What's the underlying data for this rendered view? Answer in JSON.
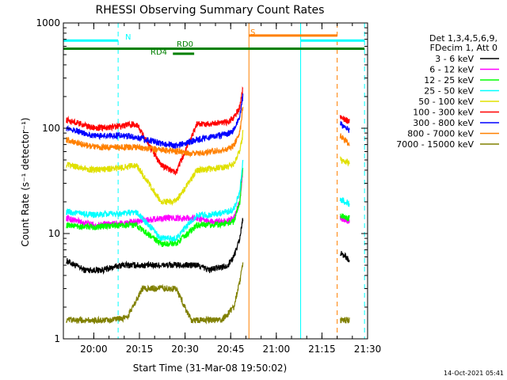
{
  "chart_data": {
    "type": "line",
    "title": "RHESSI Observing Summary Count Rates",
    "xlabel": "Start Time (31-Mar-08 19:50:02)",
    "ylabel": "Count Rate (s⁻¹ detector⁻¹)",
    "yscale": "log",
    "xlim": [
      "19:50",
      "21:30"
    ],
    "ylim": [
      1,
      1000
    ],
    "x_ticks": [
      "20:00",
      "20:15",
      "20:30",
      "20:45",
      "21:00",
      "21:15",
      "21:30"
    ],
    "y_ticks": [
      "1",
      "10",
      "100",
      "1000"
    ],
    "legend_header": [
      "Det 1,3,4,5,6,9,",
      "FDecim 1, Att 0"
    ],
    "legend_position": "right",
    "footer": "14-Oct-2021 05:41",
    "series": [
      {
        "name": "3 - 6 keV",
        "color": "#000000",
        "x": [
          "19:51",
          "19:57",
          "20:03",
          "20:09",
          "20:14",
          "20:22",
          "20:27",
          "20:34",
          "20:38",
          "20:44",
          "20:46",
          "20:48",
          "20:49",
          "21:20",
          "21:21",
          "21:23",
          "21:24"
        ],
        "y": [
          5.5,
          4.5,
          4.5,
          5,
          5,
          5,
          5,
          5,
          4.5,
          5,
          6,
          9,
          14,
          null,
          6.5,
          6,
          5.5
        ]
      },
      {
        "name": "6 - 12 keV",
        "color": "#ff00ff",
        "x": [
          "19:51",
          "20:00",
          "20:09",
          "20:14",
          "20:22",
          "20:27",
          "20:34",
          "20:38",
          "20:44",
          "20:46",
          "20:48",
          "20:49",
          "21:20",
          "21:21",
          "21:23",
          "21:24"
        ],
        "y": [
          14,
          12,
          12.5,
          13,
          14,
          14,
          14,
          13,
          13,
          14,
          20,
          40,
          null,
          14,
          13.5,
          13
        ]
      },
      {
        "name": "12 - 25 keV",
        "color": "#00ff00",
        "x": [
          "19:51",
          "20:00",
          "20:09",
          "20:14",
          "20:22",
          "20:27",
          "20:34",
          "20:38",
          "20:44",
          "20:46",
          "20:48",
          "20:49",
          "21:20",
          "21:21",
          "21:23",
          "21:24"
        ],
        "y": [
          12,
          11.5,
          12,
          12,
          8,
          8,
          12,
          12,
          12.5,
          13,
          20,
          45,
          null,
          15,
          14,
          14
        ]
      },
      {
        "name": "25 - 50 keV",
        "color": "#00ffff",
        "x": [
          "19:51",
          "20:00",
          "20:09",
          "20:14",
          "20:22",
          "20:27",
          "20:34",
          "20:38",
          "20:44",
          "20:46",
          "20:48",
          "20:49",
          "21:20",
          "21:21",
          "21:23",
          "21:24"
        ],
        "y": [
          16,
          15,
          15.5,
          16,
          9,
          9,
          15,
          15,
          16,
          17,
          25,
          50,
          null,
          21,
          20,
          19
        ]
      },
      {
        "name": "50 - 100 keV",
        "color": "#e0e000",
        "x": [
          "19:51",
          "20:00",
          "20:09",
          "20:14",
          "20:22",
          "20:27",
          "20:34",
          "20:38",
          "20:44",
          "20:46",
          "20:48",
          "20:49",
          "21:20",
          "21:21",
          "21:23",
          "21:24"
        ],
        "y": [
          45,
          40,
          42,
          45,
          20,
          20,
          40,
          41,
          43,
          46,
          60,
          90,
          null,
          50,
          48,
          47
        ]
      },
      {
        "name": "100 - 300 keV",
        "color": "#ff0000",
        "x": [
          "19:51",
          "20:00",
          "20:09",
          "20:14",
          "20:22",
          "20:27",
          "20:34",
          "20:38",
          "20:44",
          "20:46",
          "20:48",
          "20:49",
          "21:20",
          "21:21",
          "21:23",
          "21:24"
        ],
        "y": [
          120,
          100,
          105,
          110,
          45,
          38,
          110,
          110,
          115,
          125,
          160,
          240,
          null,
          130,
          120,
          115
        ]
      },
      {
        "name": "300 - 800 keV",
        "color": "#0000ff",
        "x": [
          "19:51",
          "20:00",
          "20:09",
          "20:14",
          "20:22",
          "20:27",
          "20:34",
          "20:38",
          "20:44",
          "20:46",
          "20:48",
          "20:49",
          "21:20",
          "21:21",
          "21:23",
          "21:24"
        ],
        "y": [
          100,
          85,
          85,
          82,
          72,
          68,
          78,
          82,
          88,
          95,
          130,
          200,
          null,
          110,
          100,
          95
        ]
      },
      {
        "name": "800 - 7000 keV",
        "color": "#ff8000",
        "x": [
          "19:51",
          "20:00",
          "20:09",
          "20:14",
          "20:22",
          "20:27",
          "20:34",
          "20:38",
          "20:44",
          "20:46",
          "20:48",
          "20:49",
          "21:20",
          "21:21",
          "21:23",
          "21:24"
        ],
        "y": [
          78,
          66,
          66,
          66,
          62,
          60,
          57,
          60,
          63,
          68,
          90,
          160,
          null,
          85,
          75,
          70
        ]
      },
      {
        "name": "7000 - 15000 keV",
        "color": "#808000",
        "x": [
          "19:51",
          "19:58",
          "20:06",
          "20:11",
          "20:16",
          "20:22",
          "20:27",
          "20:32",
          "20:37",
          "20:42",
          "20:46",
          "20:48",
          "20:49",
          "21:20",
          "21:21",
          "21:23",
          "21:24"
        ],
        "y": [
          1.5,
          1.5,
          1.5,
          1.6,
          3,
          3,
          3,
          1.5,
          1.5,
          1.5,
          2,
          3.5,
          5,
          null,
          1.5,
          1.5,
          1.5
        ]
      }
    ],
    "annotations": {
      "N_label": "N",
      "S_label": "S",
      "RD0_label": "RD0",
      "RD4_label": "RD4",
      "flags": [
        {
          "name": "N",
          "color": "#00ffff",
          "segments": [
            [
              "19:50",
              "20:08"
            ],
            [
              "21:08",
              "21:29"
            ]
          ],
          "level": 680
        },
        {
          "name": "S",
          "color": "#ff8000",
          "segments": [
            [
              "20:51",
              "21:20"
            ]
          ],
          "level": 760
        },
        {
          "name": "RD0",
          "color": "#008000",
          "segments": [
            [
              "19:50",
              "21:29"
            ]
          ],
          "level": 570
        },
        {
          "name": "RD4",
          "color": "#008000",
          "segments": [
            [
              "20:26",
              "20:33"
            ]
          ],
          "level": 510
        }
      ],
      "vlines": [
        {
          "t": "20:08",
          "color": "#00ffff",
          "dash": true
        },
        {
          "t": "20:51",
          "color": "#ff8000",
          "dash": false
        },
        {
          "t": "21:08",
          "color": "#00ffff",
          "dash": false
        },
        {
          "t": "21:20",
          "color": "#ff8000",
          "dash": true
        },
        {
          "t": "21:29",
          "color": "#00ffff",
          "dash": true
        }
      ]
    }
  }
}
